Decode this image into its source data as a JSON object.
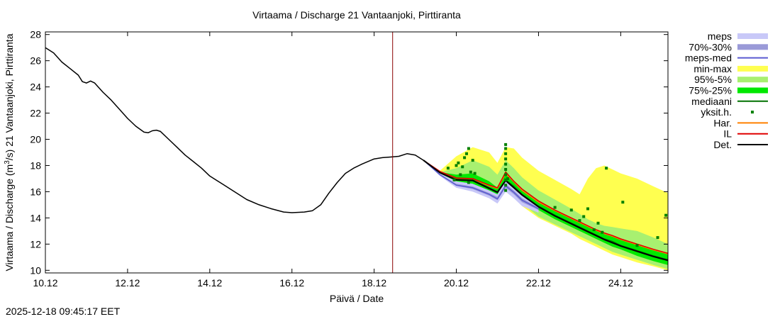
{
  "chart_data": {
    "type": "line",
    "title": "Virtaama / Discharge  21 Vantaanjoki, Pirttiranta",
    "xlabel": "Päivä / Date",
    "ylabel_main": "Virtaama / Discharge (m",
    "ylabel_sup": "3",
    "ylabel_end": "/s)  21 Vantaanjoki, Pirttiranta",
    "timestamp": "2025-12-18 09:45:17 EET",
    "xlim": [
      0,
      15.15
    ],
    "ylim": [
      9.8,
      28.2
    ],
    "now_x": 8.45,
    "x_ticks": [
      {
        "v": 0,
        "label": "10.12"
      },
      {
        "v": 2,
        "label": "12.12"
      },
      {
        "v": 4,
        "label": "14.12"
      },
      {
        "v": 6,
        "label": "16.12"
      },
      {
        "v": 8,
        "label": "18.12"
      },
      {
        "v": 10,
        "label": "20.12"
      },
      {
        "v": 12,
        "label": "22.12"
      },
      {
        "v": 14,
        "label": "24.12"
      }
    ],
    "y_ticks": [
      {
        "v": 10,
        "label": "10"
      },
      {
        "v": 12,
        "label": "12"
      },
      {
        "v": 14,
        "label": "14"
      },
      {
        "v": 16,
        "label": "16"
      },
      {
        "v": 18,
        "label": "18"
      },
      {
        "v": 20,
        "label": "20"
      },
      {
        "v": 22,
        "label": "22"
      },
      {
        "v": 24,
        "label": "24"
      },
      {
        "v": 26,
        "label": "26"
      },
      {
        "v": 28,
        "label": "28"
      }
    ],
    "colors": {
      "meps": "#c8c8f8",
      "meps_30": "#9a9ad8",
      "meps_med": "#5a5ad0",
      "minmax": "#ffff50",
      "p95_5": "#a8f070",
      "p75_25": "#00e800",
      "mediaani": "#007000",
      "yksit": "#008000",
      "har": "#ff8000",
      "il": "#e00000",
      "det": "#000000",
      "now": "#8b0000"
    },
    "legend": [
      {
        "key": "meps",
        "label": "meps",
        "style": "band"
      },
      {
        "key": "meps_30",
        "label": "70%-30%",
        "style": "band"
      },
      {
        "key": "meps_med",
        "label": "meps-med",
        "style": "line"
      },
      {
        "key": "minmax",
        "label": "min-max",
        "style": "band"
      },
      {
        "key": "p95_5",
        "label": "95%-5%",
        "style": "band"
      },
      {
        "key": "p75_25",
        "label": "75%-25%",
        "style": "band"
      },
      {
        "key": "mediaani",
        "label": "mediaani",
        "style": "line"
      },
      {
        "key": "yksit",
        "label": "yksit.h.",
        "style": "dot"
      },
      {
        "key": "har",
        "label": "Har.",
        "style": "line"
      },
      {
        "key": "il",
        "label": "IL",
        "style": "line"
      },
      {
        "key": "det",
        "label": "Det.",
        "style": "line"
      }
    ],
    "series": {
      "observed": {
        "x": [
          0,
          0.2,
          0.4,
          0.6,
          0.8,
          0.9,
          1.0,
          1.1,
          1.2,
          1.4,
          1.6,
          1.8,
          2.0,
          2.2,
          2.4,
          2.5,
          2.6,
          2.7,
          2.8,
          3.0,
          3.2,
          3.4,
          3.6,
          3.8,
          4.0,
          4.3,
          4.6,
          4.9,
          5.2,
          5.5,
          5.8,
          6.0,
          6.3,
          6.5,
          6.7,
          6.9,
          7.1,
          7.3,
          7.5,
          7.7,
          8.0,
          8.2,
          8.4,
          8.6,
          8.8,
          9.0,
          9.2
        ],
        "y": [
          27.0,
          26.6,
          25.9,
          25.4,
          24.9,
          24.4,
          24.3,
          24.45,
          24.3,
          23.6,
          23.0,
          22.3,
          21.6,
          21.0,
          20.55,
          20.5,
          20.65,
          20.7,
          20.6,
          20.0,
          19.4,
          18.8,
          18.3,
          17.8,
          17.2,
          16.6,
          16.0,
          15.4,
          15.0,
          14.7,
          14.45,
          14.4,
          14.45,
          14.55,
          15.0,
          15.9,
          16.7,
          17.4,
          17.8,
          18.1,
          18.5,
          18.6,
          18.65,
          18.7,
          18.9,
          18.8,
          18.4
        ]
      },
      "fx": [
        9.2,
        9.6,
        10.0,
        10.4,
        10.8,
        11.0,
        11.2,
        11.4,
        11.6,
        12.0,
        12.4,
        12.8,
        13.0,
        13.2,
        13.4,
        13.6,
        13.8,
        14.0,
        14.4,
        14.8,
        15.15
      ],
      "minmax_hi": [
        18.4,
        17.6,
        18.7,
        19.4,
        19.0,
        18.2,
        19.4,
        19.3,
        18.6,
        17.6,
        16.9,
        16.2,
        15.8,
        17.0,
        17.8,
        18.0,
        17.7,
        17.4,
        17.0,
        16.4,
        15.9
      ],
      "minmax_lo": [
        18.4,
        17.4,
        16.6,
        16.2,
        15.6,
        15.3,
        16.1,
        15.6,
        14.9,
        14.0,
        13.4,
        12.8,
        12.4,
        12.1,
        11.8,
        11.5,
        11.2,
        11.0,
        10.6,
        10.3,
        10.0
      ],
      "p95_hi": [
        18.4,
        17.5,
        17.8,
        18.4,
        17.9,
        17.3,
        18.4,
        17.8,
        17.1,
        16.1,
        15.4,
        14.7,
        14.3,
        13.9,
        13.6,
        13.4,
        13.3,
        13.2,
        13.0,
        12.5,
        12.0
      ],
      "p95_lo": [
        18.4,
        17.4,
        16.7,
        16.3,
        15.7,
        15.4,
        16.2,
        15.7,
        15.1,
        14.1,
        13.5,
        12.9,
        12.6,
        12.3,
        12.0,
        11.7,
        11.4,
        11.2,
        10.8,
        10.4,
        10.1
      ],
      "p75_hi": [
        18.4,
        17.5,
        17.3,
        17.4,
        16.8,
        16.3,
        17.6,
        16.8,
        16.2,
        15.3,
        14.6,
        14.0,
        13.7,
        13.4,
        13.1,
        12.8,
        12.6,
        12.4,
        12.0,
        11.6,
        11.2
      ],
      "p75_lo": [
        18.4,
        17.4,
        16.8,
        16.6,
        16.0,
        15.7,
        16.5,
        16.1,
        15.5,
        14.6,
        13.9,
        13.3,
        13.0,
        12.7,
        12.4,
        12.1,
        11.8,
        11.6,
        11.1,
        10.7,
        10.4
      ],
      "median": [
        18.4,
        17.45,
        16.95,
        16.9,
        16.3,
        16.0,
        16.9,
        16.4,
        15.8,
        14.9,
        14.2,
        13.6,
        13.3,
        13.0,
        12.7,
        12.4,
        12.2,
        11.9,
        11.5,
        11.1,
        10.8
      ],
      "det": [
        18.4,
        17.45,
        16.9,
        16.85,
        16.25,
        15.95,
        16.85,
        16.3,
        15.75,
        14.85,
        14.15,
        13.55,
        13.25,
        12.95,
        12.65,
        12.35,
        12.1,
        11.85,
        11.45,
        11.05,
        10.75
      ],
      "il": [
        18.4,
        17.55,
        17.05,
        17.0,
        16.5,
        16.3,
        17.5,
        16.8,
        16.2,
        15.3,
        14.6,
        14.0,
        13.7,
        13.4,
        13.1,
        12.85,
        12.65,
        12.4,
        12.0,
        11.6,
        11.3
      ],
      "har": [
        18.4,
        17.5,
        17.0,
        16.95,
        16.45,
        16.25,
        17.4,
        16.75,
        16.1,
        15.2,
        14.55,
        13.95,
        13.65,
        13.35,
        13.05,
        12.8,
        12.6,
        12.35,
        11.95,
        11.55,
        11.25
      ],
      "mx": [
        9.2,
        9.6,
        10.0,
        10.4,
        10.8,
        11.0,
        11.2,
        11.4,
        11.6,
        12.0
      ],
      "meps_hi": [
        18.4,
        17.4,
        16.8,
        16.6,
        16.1,
        15.8,
        16.9,
        16.3,
        15.7,
        14.9
      ],
      "meps_lo": [
        18.4,
        17.2,
        16.3,
        16.0,
        15.5,
        15.1,
        16.0,
        15.5,
        14.9,
        14.4
      ],
      "meps30_hi": [
        18.4,
        17.35,
        16.6,
        16.4,
        15.9,
        15.6,
        16.6,
        16.1,
        15.5,
        14.8
      ],
      "meps30_lo": [
        18.4,
        17.25,
        16.45,
        16.2,
        15.7,
        15.35,
        16.3,
        15.8,
        15.2,
        14.6
      ],
      "meps_med": [
        18.4,
        17.3,
        16.5,
        16.3,
        15.8,
        15.45,
        16.45,
        15.95,
        15.35,
        14.7
      ]
    },
    "yksit_points": [
      [
        9.8,
        17.8
      ],
      [
        9.95,
        16.9
      ],
      [
        10.0,
        18.0
      ],
      [
        10.05,
        18.2
      ],
      [
        10.1,
        17.3
      ],
      [
        10.15,
        17.9
      ],
      [
        10.2,
        18.6
      ],
      [
        10.25,
        18.9
      ],
      [
        10.3,
        19.3
      ],
      [
        10.35,
        17.5
      ],
      [
        10.4,
        18.4
      ],
      [
        10.45,
        17.4
      ],
      [
        10.3,
        16.7
      ],
      [
        11.2,
        19.6
      ],
      [
        11.2,
        19.3
      ],
      [
        11.2,
        18.9
      ],
      [
        11.2,
        18.5
      ],
      [
        11.2,
        18.1
      ],
      [
        11.2,
        17.7
      ],
      [
        11.2,
        17.3
      ],
      [
        11.2,
        16.9
      ],
      [
        11.2,
        16.5
      ],
      [
        11.2,
        16.1
      ],
      [
        11.25,
        17.0
      ],
      [
        13.0,
        13.8
      ],
      [
        13.1,
        14.1
      ],
      [
        13.2,
        14.7
      ],
      [
        13.35,
        13.1
      ],
      [
        13.45,
        13.6
      ],
      [
        13.55,
        12.9
      ],
      [
        13.65,
        17.8
      ],
      [
        14.05,
        15.2
      ],
      [
        14.4,
        11.9
      ],
      [
        14.9,
        12.5
      ],
      [
        15.1,
        14.2
      ],
      [
        12.4,
        14.8
      ],
      [
        12.8,
        14.6
      ]
    ]
  }
}
